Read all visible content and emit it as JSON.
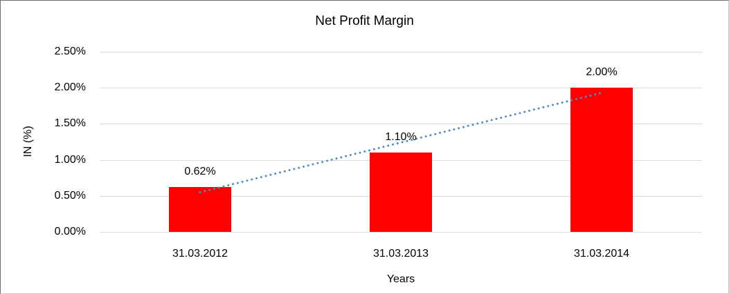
{
  "chart_data": {
    "type": "bar",
    "title": "Net Profit Margin",
    "xlabel": "Years",
    "ylabel": "IN (%)",
    "categories": [
      "31.03.2012",
      "31.03.2013",
      "31.03.2014"
    ],
    "values": [
      0.62,
      1.1,
      2.0
    ],
    "data_labels": [
      "0.62%",
      "1.10%",
      "2.00%"
    ],
    "yticks": [
      {
        "value": 0.0,
        "label": "0.00%"
      },
      {
        "value": 0.5,
        "label": "0.50%"
      },
      {
        "value": 1.0,
        "label": "1.00%"
      },
      {
        "value": 1.5,
        "label": "1.50%"
      },
      {
        "value": 2.0,
        "label": "2.00%"
      },
      {
        "value": 2.5,
        "label": "2.50%"
      }
    ],
    "ylim": [
      0,
      2.5
    ],
    "grid": true,
    "legend": "none",
    "bar_color": "#ff0000",
    "gridline_color": "#d9d9d9",
    "text_color": "#000000",
    "trendline": {
      "type": "linear",
      "style": "dotted",
      "color": "#4e8bc8",
      "start_value": 0.55,
      "end_value": 1.93
    }
  }
}
